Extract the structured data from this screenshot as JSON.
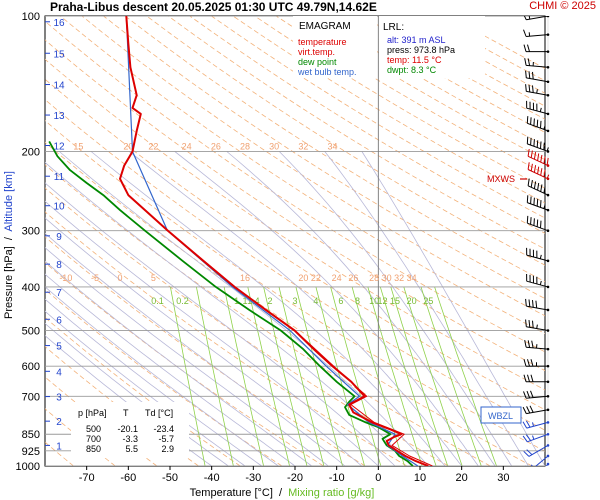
{
  "header": {
    "title": "Praha-Libus   descent   20.05.2025 01:30 UTC   49.79N,14.62E",
    "copyright": "CHMI © 2025"
  },
  "legend": {
    "heading": "EMAGRAM",
    "items": [
      {
        "label": "temperature",
        "color": "#dd0000"
      },
      {
        "label": "virt.temp.",
        "color": "#dd0000"
      },
      {
        "label": "dew point",
        "color": "#008800"
      },
      {
        "label": "wet bulb temp.",
        "color": "#3366cc"
      }
    ]
  },
  "lrl": {
    "heading": "LRL:",
    "alt": "alt: 391 m ASL",
    "press": "press: 973.8 hPa",
    "temp": "temp: 11.5 °C",
    "dwpt": "dwpt: 8.3 °C"
  },
  "summary_table": {
    "headers": [
      "p [hPa]",
      "T",
      "Td [°C]"
    ],
    "rows": [
      [
        "500",
        "-20.1",
        "-23.4"
      ],
      [
        "700",
        "-3.3",
        "-5.7"
      ],
      [
        "850",
        "5.5",
        "2.9"
      ]
    ]
  },
  "markers": {
    "mxws": "MXWS",
    "wbzl": "WBZL"
  },
  "chart_data": {
    "type": "line",
    "xlabel": "Temperature [°C]",
    "xlabel_sep": "/",
    "xlabel2": "Mixing ratio [g/kg]",
    "ylabel": "Pressure [hPa]",
    "ylabel_sep": "/",
    "ylabel2": "Altitude [km]",
    "x_ticks": [
      -70,
      -60,
      -50,
      -40,
      -30,
      -20,
      -10,
      0,
      10,
      20,
      30
    ],
    "xlim": [
      -80,
      40
    ],
    "y_scale": "log",
    "ylim": [
      1000,
      100
    ],
    "pressure_ticks": [
      100,
      200,
      300,
      400,
      500,
      600,
      700,
      850,
      925,
      1000
    ],
    "altitude_km_ticks": [
      {
        "km": "1",
        "p": 900
      },
      {
        "km": "2",
        "p": 795
      },
      {
        "km": "3",
        "p": 701
      },
      {
        "km": "4",
        "p": 616
      },
      {
        "km": "5",
        "p": 540
      },
      {
        "km": "6",
        "p": 472
      },
      {
        "km": "7",
        "p": 411
      },
      {
        "km": "8",
        "p": 356
      },
      {
        "km": "9",
        "p": 308
      },
      {
        "km": "10",
        "p": 264
      },
      {
        "km": "11",
        "p": 227
      },
      {
        "km": "12",
        "p": 194
      },
      {
        "km": "13",
        "p": 166
      },
      {
        "km": "14",
        "p": 142
      },
      {
        "km": "15",
        "p": 121
      },
      {
        "km": "16",
        "p": 103
      }
    ],
    "theta_labels_upper": {
      "p": 195,
      "labels": [
        {
          "text": "15",
          "t": -72
        },
        {
          "text": "20",
          "t": -60
        },
        {
          "text": "22",
          "t": -54
        },
        {
          "text": "24",
          "t": -46
        },
        {
          "text": "26",
          "t": -39
        },
        {
          "text": "28",
          "t": -32
        },
        {
          "text": "30",
          "t": -25
        },
        {
          "text": "32",
          "t": -18
        },
        {
          "text": "34",
          "t": -11
        }
      ]
    },
    "theta_labels_lower": {
      "p": 382,
      "labels": [
        {
          "text": "-10",
          "t": -75
        },
        {
          "text": "-5",
          "t": -68
        },
        {
          "text": "0",
          "t": -62
        },
        {
          "text": "5",
          "t": -54
        },
        {
          "text": "16",
          "t": -32
        },
        {
          "text": "20",
          "t": -18
        },
        {
          "text": "22",
          "t": -15
        },
        {
          "text": "24",
          "t": -10
        },
        {
          "text": "26",
          "t": -6
        },
        {
          "text": "28",
          "t": -1
        },
        {
          "text": "30",
          "t": 2
        },
        {
          "text": "32",
          "t": 5
        },
        {
          "text": "34",
          "t": 8
        }
      ]
    },
    "mixing_ratio_labels": {
      "p": 430,
      "labels": [
        {
          "text": "0.1",
          "t": -53
        },
        {
          "text": "0.2",
          "t": -47
        },
        {
          "text": "1",
          "t": -34
        },
        {
          "text": "1",
          "t": -32
        },
        {
          "text": "1.4",
          "t": -30
        },
        {
          "text": "2",
          "t": -26
        },
        {
          "text": "3",
          "t": -20
        },
        {
          "text": "4",
          "t": -15
        },
        {
          "text": "6",
          "t": -9
        },
        {
          "text": "8",
          "t": -5
        },
        {
          "text": "10",
          "t": -1
        },
        {
          "text": "12",
          "t": 1
        },
        {
          "text": "15",
          "t": 4
        },
        {
          "text": "20",
          "t": 8
        },
        {
          "text": "25",
          "t": 12
        }
      ]
    },
    "series": [
      {
        "name": "temperature",
        "color": "#dd0000",
        "points": [
          {
            "p": 1000,
            "t": 12
          },
          {
            "p": 975,
            "t": 9
          },
          {
            "p": 950,
            "t": 6.5
          },
          {
            "p": 925,
            "t": 4.5
          },
          {
            "p": 900,
            "t": 2.5
          },
          {
            "p": 880,
            "t": 2
          },
          {
            "p": 860,
            "t": 4
          },
          {
            "p": 850,
            "t": 5.5
          },
          {
            "p": 830,
            "t": 3
          },
          {
            "p": 800,
            "t": -1.5
          },
          {
            "p": 760,
            "t": -6
          },
          {
            "p": 730,
            "t": -7
          },
          {
            "p": 700,
            "t": -3.3
          },
          {
            "p": 650,
            "t": -6.5
          },
          {
            "p": 600,
            "t": -11
          },
          {
            "p": 550,
            "t": -15.5
          },
          {
            "p": 500,
            "t": -20.1
          },
          {
            "p": 450,
            "t": -27
          },
          {
            "p": 400,
            "t": -34.5
          },
          {
            "p": 350,
            "t": -42
          },
          {
            "p": 300,
            "t": -50.5
          },
          {
            "p": 270,
            "t": -56
          },
          {
            "p": 250,
            "t": -60
          },
          {
            "p": 230,
            "t": -62
          },
          {
            "p": 215,
            "t": -61
          },
          {
            "p": 200,
            "t": -59
          },
          {
            "p": 180,
            "t": -58
          },
          {
            "p": 165,
            "t": -57
          },
          {
            "p": 160,
            "t": -59
          },
          {
            "p": 150,
            "t": -58
          },
          {
            "p": 130,
            "t": -59.5
          },
          {
            "p": 115,
            "t": -60
          },
          {
            "p": 100,
            "t": -60.5
          }
        ]
      },
      {
        "name": "virt.temp.",
        "color": "#dd0000",
        "points": [
          {
            "p": 1000,
            "t": 13
          },
          {
            "p": 950,
            "t": 7.5
          },
          {
            "p": 900,
            "t": 3.3
          },
          {
            "p": 850,
            "t": 6.2
          },
          {
            "p": 800,
            "t": -1
          },
          {
            "p": 730,
            "t": -6.6
          },
          {
            "p": 700,
            "t": -2.8
          },
          {
            "p": 600,
            "t": -10.7
          },
          {
            "p": 500,
            "t": -20
          },
          {
            "p": 400,
            "t": -34.4
          },
          {
            "p": 300,
            "t": -50.5
          }
        ]
      },
      {
        "name": "dew point",
        "color": "#008800",
        "points": [
          {
            "p": 1000,
            "t": 8.3
          },
          {
            "p": 975,
            "t": 7
          },
          {
            "p": 950,
            "t": 5
          },
          {
            "p": 925,
            "t": 4
          },
          {
            "p": 900,
            "t": 2
          },
          {
            "p": 870,
            "t": 1
          },
          {
            "p": 850,
            "t": 2.9
          },
          {
            "p": 820,
            "t": 0
          },
          {
            "p": 800,
            "t": -3
          },
          {
            "p": 770,
            "t": -7
          },
          {
            "p": 740,
            "t": -8
          },
          {
            "p": 720,
            "t": -7
          },
          {
            "p": 700,
            "t": -5.7
          },
          {
            "p": 650,
            "t": -10
          },
          {
            "p": 600,
            "t": -14
          },
          {
            "p": 550,
            "t": -18
          },
          {
            "p": 500,
            "t": -23.4
          },
          {
            "p": 450,
            "t": -31
          },
          {
            "p": 400,
            "t": -39
          },
          {
            "p": 350,
            "t": -47
          },
          {
            "p": 300,
            "t": -56
          },
          {
            "p": 270,
            "t": -62
          },
          {
            "p": 250,
            "t": -66
          },
          {
            "p": 235,
            "t": -70
          },
          {
            "p": 220,
            "t": -74
          },
          {
            "p": 205,
            "t": -77
          },
          {
            "p": 190,
            "t": -79
          }
        ]
      },
      {
        "name": "wet bulb temp.",
        "color": "#3366cc",
        "points": [
          {
            "p": 1000,
            "t": 9.5
          },
          {
            "p": 950,
            "t": 5.8
          },
          {
            "p": 900,
            "t": 2.2
          },
          {
            "p": 850,
            "t": 4
          },
          {
            "p": 800,
            "t": -2.2
          },
          {
            "p": 730,
            "t": -7.4
          },
          {
            "p": 700,
            "t": -4.5
          },
          {
            "p": 600,
            "t": -12.5
          },
          {
            "p": 500,
            "t": -21.2
          },
          {
            "p": 400,
            "t": -35
          },
          {
            "p": 300,
            "t": -50.6
          },
          {
            "p": 200,
            "t": -59
          },
          {
            "p": 100,
            "t": -60.5
          }
        ]
      }
    ],
    "wind_barbs": [
      {
        "p": 990,
        "dir": 220,
        "kt": 10
      },
      {
        "p": 950,
        "dir": 230,
        "kt": 15
      },
      {
        "p": 900,
        "dir": 240,
        "kt": 20
      },
      {
        "p": 850,
        "dir": 250,
        "kt": 25
      },
      {
        "p": 800,
        "dir": 255,
        "kt": 25
      },
      {
        "p": 750,
        "dir": 260,
        "kt": 30
      },
      {
        "p": 700,
        "dir": 265,
        "kt": 30
      },
      {
        "p": 650,
        "dir": 270,
        "kt": 30
      },
      {
        "p": 600,
        "dir": 270,
        "kt": 35
      },
      {
        "p": 550,
        "dir": 275,
        "kt": 35
      },
      {
        "p": 500,
        "dir": 280,
        "kt": 35
      },
      {
        "p": 450,
        "dir": 280,
        "kt": 40
      },
      {
        "p": 400,
        "dir": 285,
        "kt": 45
      },
      {
        "p": 350,
        "dir": 285,
        "kt": 45
      },
      {
        "p": 300,
        "dir": 290,
        "kt": 50
      },
      {
        "p": 270,
        "dir": 290,
        "kt": 55
      },
      {
        "p": 250,
        "dir": 295,
        "kt": 60
      },
      {
        "p": 230,
        "dir": 295,
        "kt": 65
      },
      {
        "p": 215,
        "dir": 295,
        "kt": 70
      },
      {
        "p": 200,
        "dir": 290,
        "kt": 65
      },
      {
        "p": 180,
        "dir": 290,
        "kt": 55
      },
      {
        "p": 165,
        "dir": 285,
        "kt": 45
      },
      {
        "p": 150,
        "dir": 280,
        "kt": 35
      },
      {
        "p": 140,
        "dir": 280,
        "kt": 30
      },
      {
        "p": 130,
        "dir": 275,
        "kt": 25
      },
      {
        "p": 120,
        "dir": 270,
        "kt": 20
      },
      {
        "p": 110,
        "dir": 265,
        "kt": 15
      },
      {
        "p": 100,
        "dir": 260,
        "kt": 15
      }
    ]
  }
}
